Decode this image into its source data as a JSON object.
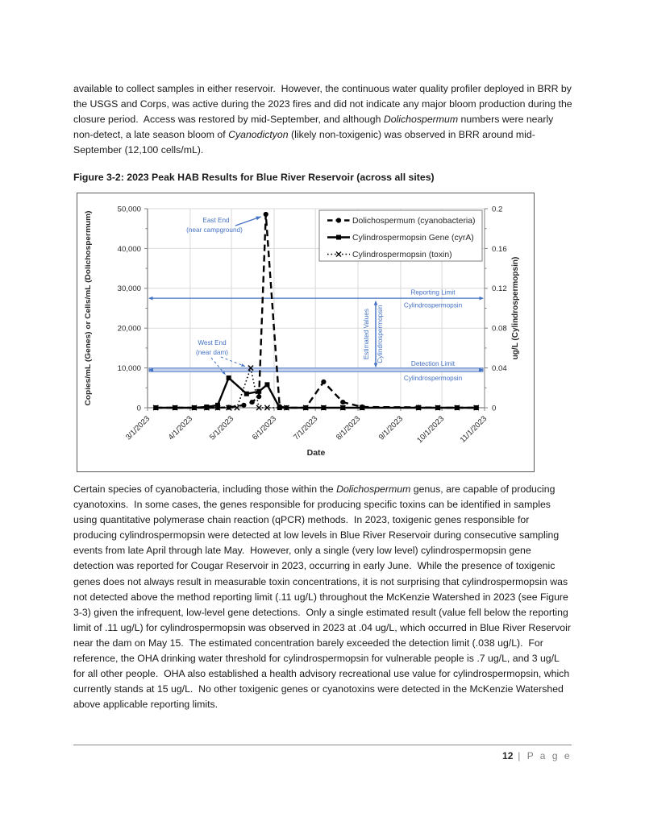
{
  "document": {
    "paragraphs": {
      "intro": [
        {
          "t": "available to collect samples in either reservoir.  However, the continuous water quality profiler deployed in BRR by the USGS and Corps, was active during the 2023 fires and did not indicate any major bloom production during the closure period.  Access was restored by mid-September, and although "
        },
        {
          "t": "Dolichospermum",
          "i": true
        },
        {
          "t": " numbers were nearly non-detect, a late season bloom of "
        },
        {
          "t": "Cyanodictyon",
          "i": true
        },
        {
          "t": " (likely non-toxigenic) was observed in BRR around mid-September (12,100 cells/mL)."
        }
      ],
      "body": [
        {
          "t": "Certain species of cyanobacteria, including those within the "
        },
        {
          "t": "Dolichospermum",
          "i": true
        },
        {
          "t": " genus, are capable of producing cyanotoxins.  In some cases, the genes responsible for producing specific toxins can be identified in samples using quantitative polymerase chain reaction (qPCR) methods.  In 2023, toxigenic genes responsible for producing cylindrospermopsin were detected at low levels in Blue River Reservoir during consecutive sampling events from late April through late May.  However, only a single (very low level) cylindrospermopsin gene detection was reported for Cougar Reservoir in 2023, occurring in early June.  While the presence of toxigenic genes does not always result in measurable toxin concentrations, it is not surprising that cylindrospermopsin was not detected above the method reporting limit (.11 ug/L) throughout the McKenzie Watershed in 2023 (see Figure 3-3) given the infrequent, low-level gene detections.  Only a single estimated result (value fell below the reporting limit of .11 ug/L) for cylindrospermopsin was observed in 2023 at .04 ug/L, which occurred in Blue River Reservoir near the dam on May 15.  The estimated concentration barely exceeded the detection limit (.038 ug/L).  For reference, the OHA drinking water threshold for cylindrospermopsin for vulnerable people is .7 ug/L, and 3 ug/L for all other people.  OHA also established a health advisory recreational use value for cylindrospermopsin, which currently stands at 15 ug/L.  No other toxigenic genes or cyanotoxins were detected in the McKenzie Watershed above applicable reporting limits."
        }
      ]
    },
    "figure_caption": "Figure 3-2: 2023 Peak HAB Results for Blue River Reservoir (across all sites)",
    "footer": {
      "page_number": "12",
      "separator": "|",
      "page_word": "P a g e"
    }
  },
  "chart_data": {
    "type": "line",
    "xlabel": "Date",
    "ylabel_left": "Copies/mL (Genes) or Cells/mL (Dolichospermum)",
    "ylabel_right": "ug/L (Cylindrospermopsin)",
    "x_start": "3/1/2023",
    "x_end": "11/1/2023",
    "x_ticks": [
      "3/1/2023",
      "4/1/2023",
      "5/1/2023",
      "6/1/2023",
      "7/1/2023",
      "8/1/2023",
      "9/1/2023",
      "10/1/2023",
      "11/1/2023"
    ],
    "ylim_left": [
      0,
      50000
    ],
    "ylim_right": [
      0,
      0.2
    ],
    "yticks_left": [
      {
        "v": 0,
        "label": "0"
      },
      {
        "v": 10000,
        "label": "10,000"
      },
      {
        "v": 20000,
        "label": "20,000"
      },
      {
        "v": 30000,
        "label": "30,000"
      },
      {
        "v": 40000,
        "label": "40,000"
      },
      {
        "v": 50000,
        "label": "50,000"
      }
    ],
    "yticks_right": [
      {
        "v": 0,
        "label": "0"
      },
      {
        "v": 0.04,
        "label": "0.04"
      },
      {
        "v": 0.08,
        "label": "0.08"
      },
      {
        "v": 0.12,
        "label": "0.12"
      },
      {
        "v": 0.16,
        "label": "0.16"
      },
      {
        "v": 0.2,
        "label": "0.2"
      }
    ],
    "y_minor_left": 5000,
    "y_minor_right": 0.02,
    "legend_position": "top-right",
    "grid": true,
    "series": [
      {
        "name": "Dolichospermum (cyanobacteria)",
        "axis": "left",
        "style": "dashed",
        "marker": "circle",
        "points": [
          [
            "3/7/2023",
            0
          ],
          [
            "3/21/2023",
            0
          ],
          [
            "4/4/2023",
            0
          ],
          [
            "4/13/2023",
            0
          ],
          [
            "4/21/2023",
            0
          ],
          [
            "4/29/2023",
            100
          ],
          [
            "5/10/2023",
            650
          ],
          [
            "5/16/2023",
            1400
          ],
          [
            "5/21/2023",
            2800
          ],
          [
            "5/26/2023",
            48600
          ],
          [
            "6/5/2023",
            300
          ],
          [
            "6/10/2023",
            0
          ],
          [
            "6/24/2023",
            0
          ],
          [
            "7/7/2023",
            6500
          ],
          [
            "7/21/2023",
            1400
          ],
          [
            "8/4/2023",
            200
          ],
          [
            "9/14/2023",
            100
          ],
          [
            "9/28/2023",
            0
          ],
          [
            "10/12/2023",
            0
          ],
          [
            "10/26/2023",
            0
          ]
        ]
      },
      {
        "name": "Cylindrospermopsin Gene (cyrA)",
        "axis": "left",
        "style": "solid",
        "marker": "square",
        "points": [
          [
            "3/7/2023",
            0
          ],
          [
            "3/21/2023",
            0
          ],
          [
            "4/4/2023",
            0
          ],
          [
            "4/13/2023",
            200
          ],
          [
            "4/21/2023",
            650
          ],
          [
            "4/29/2023",
            7500
          ],
          [
            "5/12/2023",
            3500
          ],
          [
            "5/21/2023",
            4100
          ],
          [
            "5/27/2023",
            5800
          ],
          [
            "6/5/2023",
            0
          ],
          [
            "6/24/2023",
            0
          ],
          [
            "7/7/2023",
            0
          ],
          [
            "7/21/2023",
            0
          ],
          [
            "8/4/2023",
            0
          ],
          [
            "9/14/2023",
            0
          ],
          [
            "9/28/2023",
            0
          ],
          [
            "10/12/2023",
            0
          ],
          [
            "10/26/2023",
            0
          ]
        ]
      },
      {
        "name": "Cylindrospermopsin (toxin)",
        "axis": "right",
        "style": "dotted",
        "marker": "x",
        "points": [
          [
            "3/7/2023",
            0
          ],
          [
            "3/21/2023",
            0
          ],
          [
            "4/4/2023",
            0
          ],
          [
            "4/13/2023",
            0
          ],
          [
            "4/21/2023",
            0
          ],
          [
            "4/29/2023",
            0
          ],
          [
            "5/5/2023",
            0
          ],
          [
            "5/15/2023",
            0.04
          ],
          [
            "5/21/2023",
            0
          ],
          [
            "5/27/2023",
            0
          ],
          [
            "6/10/2023",
            0
          ],
          [
            "6/24/2023",
            0
          ],
          [
            "7/7/2023",
            0
          ],
          [
            "7/21/2023",
            0
          ],
          [
            "8/4/2023",
            0
          ],
          [
            "9/14/2023",
            0
          ],
          [
            "9/28/2023",
            0
          ],
          [
            "10/12/2023",
            0
          ],
          [
            "10/26/2023",
            0
          ]
        ]
      }
    ],
    "reference_lines": [
      {
        "name": "reporting-limit",
        "label_line1": "Reporting Limit",
        "label_line2": "Cylindrospermopsin",
        "value": 0.11,
        "axis": "right",
        "style": "arrow-line"
      },
      {
        "name": "detection-limit",
        "label_line1": "Detection Limit",
        "label_line2": "Cylindrospermopsin",
        "value": 0.038,
        "axis": "right",
        "style": "arrow-band"
      }
    ],
    "annotations": {
      "east_end": {
        "lines": [
          "East End",
          "(near campground)"
        ]
      },
      "west_end": {
        "lines": [
          "West End",
          "(near dam)"
        ]
      },
      "estimated": {
        "lines": [
          "Estimated Values",
          "Cylindrospermopsin"
        ]
      }
    },
    "colors": {
      "series": "#000000",
      "annotation": "#4472C4",
      "grid": "#D9D9D9",
      "axis": "#808080",
      "band_fill": "#C5D3EC",
      "tick_text": "#262626",
      "legend_border": "#7f7f7f"
    }
  }
}
